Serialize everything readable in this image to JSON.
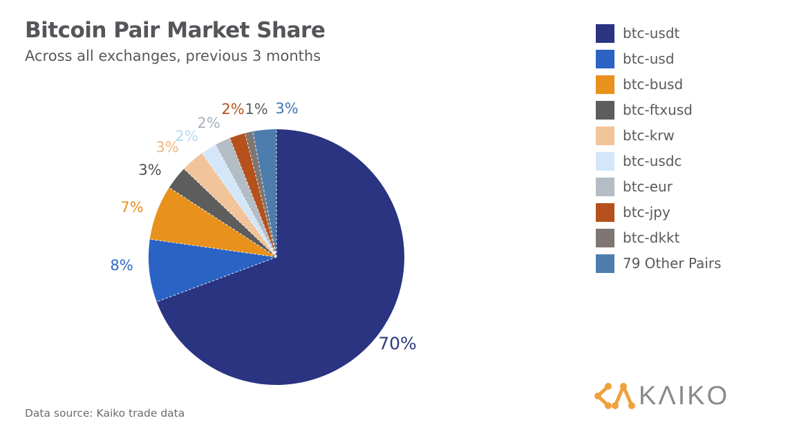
{
  "header": {
    "title": "Bitcoin Pair Market Share",
    "subtitle": "Across all exchanges, previous 3 months"
  },
  "chart_data": {
    "type": "pie",
    "title": "Bitcoin Pair Market Share",
    "subtitle": "Across all exchanges, previous 3 months",
    "legend_position": "right",
    "values_unit": "%",
    "start_angle_deg": 0,
    "direction": "clockwise",
    "slices": [
      {
        "name": "btc-usdt",
        "value": 70,
        "label": "70%",
        "color": "#2a3480",
        "label_color": "#2e3a7d"
      },
      {
        "name": "btc-usd",
        "value": 8,
        "label": "8%",
        "color": "#2b63c4",
        "label_color": "#2f67c3"
      },
      {
        "name": "btc-busd",
        "value": 7,
        "label": "7%",
        "color": "#e8911c",
        "label_color": "#e8901d"
      },
      {
        "name": "btc-ftxusd",
        "value": 3,
        "label": "3%",
        "color": "#5d5d5d",
        "label_color": "#4f4f51"
      },
      {
        "name": "btc-krw",
        "value": 3,
        "label": "3%",
        "color": "#f2c49a",
        "label_color": "#f1b47c"
      },
      {
        "name": "btc-usdc",
        "value": 2,
        "label": "2%",
        "color": "#d3e7f8",
        "label_color": "#b5d8f1"
      },
      {
        "name": "btc-eur",
        "value": 2,
        "label": "2%",
        "color": "#b4bcc6",
        "label_color": "#a9b1bb"
      },
      {
        "name": "btc-jpy",
        "value": 2,
        "label": "2%",
        "color": "#b5511d",
        "label_color": "#b5521d"
      },
      {
        "name": "btc-dkkt",
        "value": 1,
        "label": "1%",
        "color": "#7e7673",
        "label_color": "#595a5c"
      },
      {
        "name": "79 Other Pairs",
        "value": 3,
        "label": "3%",
        "color": "#4d7dad",
        "label_color": "#3d76af"
      }
    ]
  },
  "footer": {
    "source": "Data source: Kaiko trade data",
    "logo_text": "KΛIKO"
  }
}
